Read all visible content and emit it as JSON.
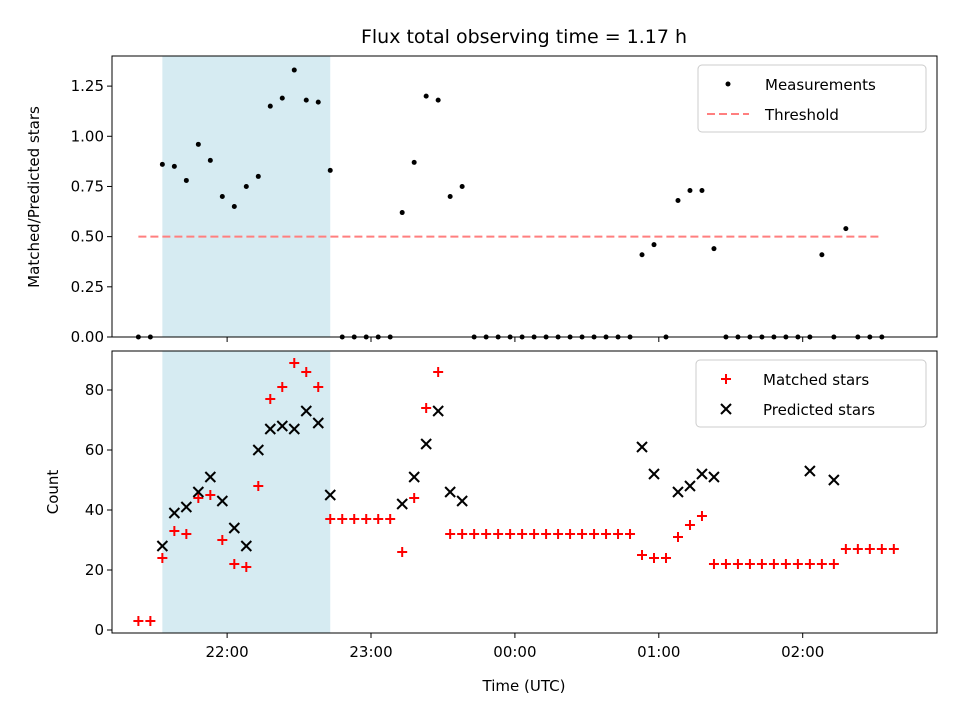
{
  "title": "Flux total observing time = 1.17 h",
  "xlabel": "Time (UTC)",
  "x_ticks": [
    "22:00",
    "23:00",
    "00:00",
    "01:00",
    "02:00"
  ],
  "colors": {
    "measurements": "#000000",
    "threshold": "#ff7f7f",
    "matched": "#ff0000",
    "predicted": "#000000",
    "shade": "#add8e6"
  },
  "chart_data": [
    {
      "type": "scatter",
      "ylabel": "Matched/Predicted stars",
      "xlim": [
        "21:12",
        "02:56"
      ],
      "ylim": [
        0,
        1.4
      ],
      "y_ticks": [
        "0.00",
        "0.25",
        "0.50",
        "0.75",
        "1.00",
        "1.25"
      ],
      "shaded_span": [
        "21:33",
        "22:43"
      ],
      "legend": {
        "position": "upper right",
        "entries": [
          "Measurements",
          "Threshold"
        ]
      },
      "threshold": {
        "name": "Threshold",
        "value": 0.5,
        "x_range": [
          "21:23",
          "02:33"
        ]
      },
      "series": [
        {
          "name": "Measurements",
          "points": [
            [
              "21:23",
              0
            ],
            [
              "21:28",
              0
            ],
            [
              "21:33",
              0.86
            ],
            [
              "21:38",
              0.85
            ],
            [
              "21:43",
              0.78
            ],
            [
              "21:48",
              0.96
            ],
            [
              "21:53",
              0.88
            ],
            [
              "21:58",
              0.7
            ],
            [
              "22:03",
              0.65
            ],
            [
              "22:08",
              0.75
            ],
            [
              "22:13",
              0.8
            ],
            [
              "22:18",
              1.15
            ],
            [
              "22:23",
              1.19
            ],
            [
              "22:28",
              1.33
            ],
            [
              "22:33",
              1.18
            ],
            [
              "22:38",
              1.17
            ],
            [
              "22:43",
              0.83
            ],
            [
              "22:48",
              0
            ],
            [
              "22:53",
              0
            ],
            [
              "22:58",
              0
            ],
            [
              "23:03",
              0
            ],
            [
              "23:08",
              0
            ],
            [
              "23:13",
              0.62
            ],
            [
              "23:18",
              0.87
            ],
            [
              "23:23",
              1.2
            ],
            [
              "23:28",
              1.18
            ],
            [
              "23:33",
              0.7
            ],
            [
              "23:38",
              0.75
            ],
            [
              "23:43",
              0
            ],
            [
              "23:48",
              0
            ],
            [
              "23:53",
              0
            ],
            [
              "23:58",
              0
            ],
            [
              "00:03",
              0
            ],
            [
              "00:08",
              0
            ],
            [
              "00:13",
              0
            ],
            [
              "00:18",
              0
            ],
            [
              "00:23",
              0
            ],
            [
              "00:28",
              0
            ],
            [
              "00:33",
              0
            ],
            [
              "00:38",
              0
            ],
            [
              "00:43",
              0
            ],
            [
              "00:48",
              0
            ],
            [
              "00:53",
              0.41
            ],
            [
              "00:58",
              0.46
            ],
            [
              "01:03",
              0
            ],
            [
              "01:08",
              0.68
            ],
            [
              "01:13",
              0.73
            ],
            [
              "01:18",
              0.73
            ],
            [
              "01:23",
              0.44
            ],
            [
              "01:28",
              0
            ],
            [
              "01:33",
              0
            ],
            [
              "01:38",
              0
            ],
            [
              "01:43",
              0
            ],
            [
              "01:48",
              0
            ],
            [
              "01:53",
              0
            ],
            [
              "01:58",
              0
            ],
            [
              "02:03",
              0
            ],
            [
              "02:08",
              0.41
            ],
            [
              "02:13",
              0
            ],
            [
              "02:18",
              0.54
            ],
            [
              "02:23",
              0
            ],
            [
              "02:28",
              0
            ],
            [
              "02:33",
              0
            ]
          ]
        }
      ]
    },
    {
      "type": "scatter",
      "ylabel": "Count",
      "xlim": [
        "21:12",
        "02:56"
      ],
      "ylim": [
        -1,
        93
      ],
      "y_ticks": [
        "0",
        "20",
        "40",
        "60",
        "80"
      ],
      "shaded_span": [
        "21:33",
        "22:43"
      ],
      "legend": {
        "position": "upper right",
        "entries": [
          "Matched stars",
          "Predicted stars"
        ]
      },
      "series": [
        {
          "name": "Matched stars",
          "points": [
            [
              "21:23",
              3
            ],
            [
              "21:28",
              3
            ],
            [
              "21:33",
              24
            ],
            [
              "21:38",
              33
            ],
            [
              "21:43",
              32
            ],
            [
              "21:48",
              44
            ],
            [
              "21:53",
              45
            ],
            [
              "21:58",
              30
            ],
            [
              "22:03",
              22
            ],
            [
              "22:08",
              21
            ],
            [
              "22:13",
              48
            ],
            [
              "22:18",
              77
            ],
            [
              "22:23",
              81
            ],
            [
              "22:28",
              89
            ],
            [
              "22:33",
              86
            ],
            [
              "22:38",
              81
            ],
            [
              "22:43",
              37
            ],
            [
              "22:48",
              37
            ],
            [
              "22:53",
              37
            ],
            [
              "22:58",
              37
            ],
            [
              "23:03",
              37
            ],
            [
              "23:08",
              37
            ],
            [
              "23:13",
              26
            ],
            [
              "23:18",
              44
            ],
            [
              "23:23",
              74
            ],
            [
              "23:28",
              86
            ],
            [
              "23:33",
              32
            ],
            [
              "23:38",
              32
            ],
            [
              "23:43",
              32
            ],
            [
              "23:48",
              32
            ],
            [
              "23:53",
              32
            ],
            [
              "23:58",
              32
            ],
            [
              "00:03",
              32
            ],
            [
              "00:08",
              32
            ],
            [
              "00:13",
              32
            ],
            [
              "00:18",
              32
            ],
            [
              "00:23",
              32
            ],
            [
              "00:28",
              32
            ],
            [
              "00:33",
              32
            ],
            [
              "00:38",
              32
            ],
            [
              "00:43",
              32
            ],
            [
              "00:48",
              32
            ],
            [
              "00:53",
              25
            ],
            [
              "00:58",
              24
            ],
            [
              "01:03",
              24
            ],
            [
              "01:08",
              31
            ],
            [
              "01:13",
              35
            ],
            [
              "01:18",
              38
            ],
            [
              "01:23",
              22
            ],
            [
              "01:28",
              22
            ],
            [
              "01:33",
              22
            ],
            [
              "01:38",
              22
            ],
            [
              "01:43",
              22
            ],
            [
              "01:48",
              22
            ],
            [
              "01:53",
              22
            ],
            [
              "01:58",
              22
            ],
            [
              "02:03",
              22
            ],
            [
              "02:08",
              22
            ],
            [
              "02:13",
              22
            ],
            [
              "02:18",
              27
            ],
            [
              "02:23",
              27
            ],
            [
              "02:28",
              27
            ],
            [
              "02:33",
              27
            ],
            [
              "02:38",
              27
            ]
          ]
        },
        {
          "name": "Predicted stars",
          "points": [
            [
              "21:33",
              28
            ],
            [
              "21:38",
              39
            ],
            [
              "21:43",
              41
            ],
            [
              "21:48",
              46
            ],
            [
              "21:53",
              51
            ],
            [
              "21:58",
              43
            ],
            [
              "22:03",
              34
            ],
            [
              "22:08",
              28
            ],
            [
              "22:13",
              60
            ],
            [
              "22:18",
              67
            ],
            [
              "22:23",
              68
            ],
            [
              "22:28",
              67
            ],
            [
              "22:33",
              73
            ],
            [
              "22:38",
              69
            ],
            [
              "22:43",
              45
            ],
            [
              "23:13",
              42
            ],
            [
              "23:18",
              51
            ],
            [
              "23:23",
              62
            ],
            [
              "23:28",
              73
            ],
            [
              "23:33",
              46
            ],
            [
              "23:38",
              43
            ],
            [
              "00:53",
              61
            ],
            [
              "00:58",
              52
            ],
            [
              "01:08",
              46
            ],
            [
              "01:13",
              48
            ],
            [
              "01:18",
              52
            ],
            [
              "01:23",
              51
            ],
            [
              "02:03",
              53
            ],
            [
              "02:13",
              50
            ]
          ]
        }
      ]
    }
  ]
}
